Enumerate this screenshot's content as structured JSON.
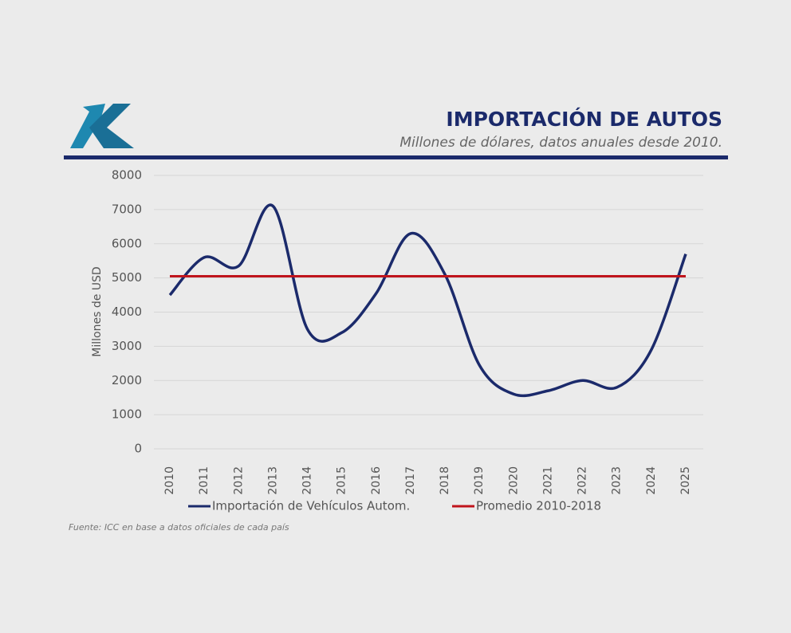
{
  "chart_data": {
    "type": "line",
    "title": "IMPORTACIÓN DE AUTOS",
    "subtitle": "Millones de dólares, datos anuales desde 2010.",
    "y_label": "Millones de USD",
    "source": "Fuente: ICC en base a datos oficiales de cada país",
    "categories": [
      "2010",
      "2011",
      "2012",
      "2013",
      "2014",
      "2015",
      "2016",
      "2017",
      "2018",
      "2019",
      "2020",
      "2021",
      "2022",
      "2023",
      "2024",
      "2025"
    ],
    "series": [
      {
        "name": "Importación de Vehículos Autom.",
        "color": "#1b2a6b",
        "values": [
          4500,
          5600,
          5350,
          7100,
          3500,
          3400,
          4550,
          6300,
          5100,
          2450,
          1600,
          1700,
          2000,
          1800,
          2900,
          5700
        ]
      },
      {
        "name": "Promedio 2010-2018",
        "color": "#c0141c",
        "values": [
          5050,
          5050,
          5050,
          5050,
          5050,
          5050,
          5050,
          5050,
          5050,
          5050,
          5050,
          5050,
          5050,
          5050,
          5050,
          5050
        ]
      }
    ],
    "ylim": [
      0,
      8000
    ],
    "yticks": [
      0,
      1000,
      2000,
      3000,
      4000,
      5000,
      6000,
      7000,
      8000
    ],
    "grid": true
  }
}
